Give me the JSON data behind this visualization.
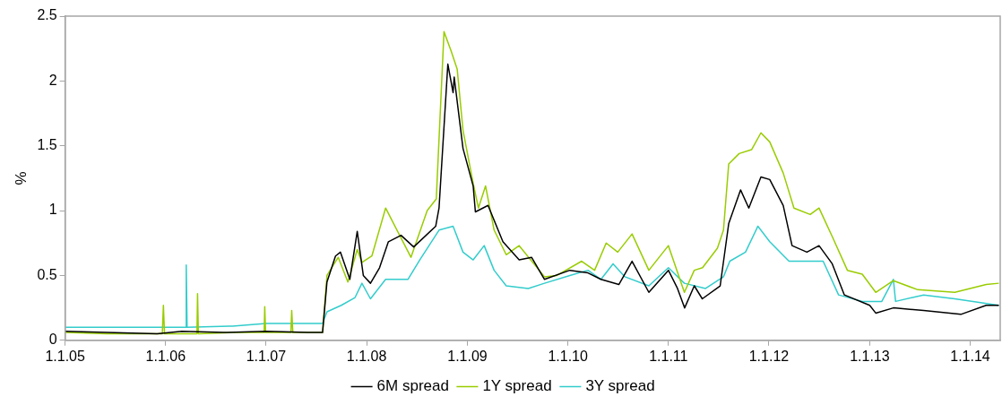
{
  "chart_data": {
    "type": "line",
    "ylabel": "%",
    "xlim": [
      "2005-01-01",
      "2014-04-20"
    ],
    "xticks": [
      {
        "value": "2005-01-01",
        "label": "1.1.05"
      },
      {
        "value": "2006-01-01",
        "label": "1.1.06"
      },
      {
        "value": "2007-01-01",
        "label": "1.1.07"
      },
      {
        "value": "2008-01-01",
        "label": "1.1.08"
      },
      {
        "value": "2009-01-01",
        "label": "1.1.09"
      },
      {
        "value": "2010-01-01",
        "label": "1.1.10"
      },
      {
        "value": "2011-01-01",
        "label": "1.1.11"
      },
      {
        "value": "2012-01-01",
        "label": "1.1.12"
      },
      {
        "value": "2013-01-01",
        "label": "1.1.13"
      },
      {
        "value": "2014-01-01",
        "label": "1.1.14"
      }
    ],
    "ylim": [
      0,
      2.5
    ],
    "yticks": [
      0,
      0.5,
      1,
      1.5,
      2,
      2.5
    ],
    "grid": false,
    "legend": "bottom",
    "marker": "none",
    "line_style": "solid",
    "series": [
      {
        "name": "6M spread",
        "color": "#000000",
        "x": [
          "2005-01-03",
          "2005-06-01",
          "2005-12-01",
          "2006-03-01",
          "2006-08-01",
          "2007-01-01",
          "2007-06-01",
          "2007-07-25",
          "2007-08-10",
          "2007-09-10",
          "2007-09-28",
          "2007-11-01",
          "2007-11-28",
          "2007-12-20",
          "2008-01-15",
          "2008-02-17",
          "2008-03-20",
          "2008-05-05",
          "2008-06-20",
          "2008-09-08",
          "2008-09-20",
          "2008-10-22",
          "2008-11-10",
          "2008-11-14",
          "2008-12-16",
          "2009-01-22",
          "2009-01-30",
          "2009-03-17",
          "2009-05-10",
          "2009-07-08",
          "2009-08-22",
          "2009-10-08",
          "2010-01-08",
          "2010-03-15",
          "2010-05-01",
          "2010-07-05",
          "2010-08-22",
          "2010-10-22",
          "2011-01-01",
          "2011-02-03",
          "2011-03-01",
          "2011-04-05",
          "2011-05-04",
          "2011-07-08",
          "2011-08-08",
          "2011-09-20",
          "2011-10-20",
          "2011-12-03",
          "2012-01-04",
          "2012-02-22",
          "2012-03-25",
          "2012-05-18",
          "2012-07-01",
          "2012-08-18",
          "2012-10-01",
          "2013-01-01",
          "2013-01-23",
          "2013-03-28",
          "2013-07-16",
          "2013-11-28",
          "2014-02-28",
          "2014-04-15"
        ],
        "values": [
          0.07,
          0.06,
          0.05,
          0.07,
          0.06,
          0.07,
          0.06,
          0.06,
          0.45,
          0.65,
          0.68,
          0.47,
          0.84,
          0.5,
          0.44,
          0.56,
          0.76,
          0.81,
          0.72,
          0.88,
          1.02,
          2.13,
          1.91,
          2.03,
          1.48,
          1.19,
          0.99,
          1.04,
          0.76,
          0.62,
          0.64,
          0.47,
          0.54,
          0.52,
          0.47,
          0.43,
          0.61,
          0.37,
          0.54,
          0.4,
          0.25,
          0.42,
          0.32,
          0.42,
          0.9,
          1.16,
          1.02,
          1.26,
          1.24,
          1.04,
          0.73,
          0.68,
          0.73,
          0.59,
          0.35,
          0.27,
          0.21,
          0.25,
          0.23,
          0.2,
          0.27,
          0.27
        ]
      },
      {
        "name": "1Y spread",
        "color": "#99cc00",
        "x": [
          "2005-01-03",
          "2005-06-01",
          "2005-12-20",
          "2005-12-24",
          "2005-12-28",
          "2006-04-25",
          "2006-04-27",
          "2006-04-30",
          "2006-09-01",
          "2006-12-25",
          "2006-12-27",
          "2006-12-30",
          "2007-04-01",
          "2007-04-04",
          "2007-04-08",
          "2007-07-25",
          "2007-08-10",
          "2007-09-20",
          "2007-10-25",
          "2007-11-28",
          "2007-12-15",
          "2008-01-20",
          "2008-03-10",
          "2008-06-10",
          "2008-08-08",
          "2008-09-10",
          "2008-10-08",
          "2008-11-03",
          "2008-11-25",
          "2008-12-16",
          "2009-01-22",
          "2009-02-10",
          "2009-03-08",
          "2009-04-08",
          "2009-05-22",
          "2009-07-08",
          "2009-10-08",
          "2009-11-22",
          "2010-02-20",
          "2010-04-08",
          "2010-05-20",
          "2010-07-01",
          "2010-08-22",
          "2010-10-22",
          "2011-01-01",
          "2011-02-28",
          "2011-04-05",
          "2011-05-05",
          "2011-06-28",
          "2011-07-20",
          "2011-08-08",
          "2011-09-15",
          "2011-10-30",
          "2011-12-03",
          "2012-01-04",
          "2012-02-22",
          "2012-04-01",
          "2012-05-30",
          "2012-07-01",
          "2012-08-18",
          "2012-10-12",
          "2012-12-05",
          "2013-01-23",
          "2013-03-28",
          "2013-06-25",
          "2013-11-06",
          "2014-02-28",
          "2014-04-15"
        ],
        "values": [
          0.06,
          0.05,
          0.05,
          0.27,
          0.05,
          0.05,
          0.36,
          0.05,
          0.06,
          0.06,
          0.26,
          0.06,
          0.06,
          0.23,
          0.06,
          0.06,
          0.5,
          0.64,
          0.45,
          0.7,
          0.6,
          0.65,
          1.02,
          0.64,
          1,
          1.09,
          2.38,
          2.23,
          2.09,
          1.62,
          1.21,
          1.02,
          1.19,
          0.85,
          0.66,
          0.73,
          0.49,
          0.5,
          0.61,
          0.54,
          0.75,
          0.68,
          0.82,
          0.54,
          0.73,
          0.37,
          0.54,
          0.56,
          0.71,
          0.85,
          1.36,
          1.44,
          1.47,
          1.6,
          1.53,
          1.29,
          1.02,
          0.97,
          1.02,
          0.8,
          0.54,
          0.51,
          0.37,
          0.46,
          0.39,
          0.37,
          0.43,
          0.44
        ]
      },
      {
        "name": "3Y spread",
        "color": "#33cccc",
        "x": [
          "2005-01-03",
          "2005-06-01",
          "2006-03-15",
          "2006-03-17",
          "2006-03-20",
          "2006-09-01",
          "2007-01-01",
          "2007-07-25",
          "2007-08-10",
          "2007-10-01",
          "2007-11-20",
          "2007-12-15",
          "2008-01-15",
          "2008-03-10",
          "2008-05-30",
          "2008-07-12",
          "2008-09-20",
          "2008-11-10",
          "2008-12-16",
          "2009-01-22",
          "2009-03-03",
          "2009-04-08",
          "2009-05-22",
          "2009-08-10",
          "2009-10-08",
          "2010-01-08",
          "2010-03-15",
          "2010-05-01",
          "2010-06-14",
          "2010-07-27",
          "2010-10-22",
          "2011-01-01",
          "2011-02-28",
          "2011-05-16",
          "2011-07-20",
          "2011-08-12",
          "2011-10-08",
          "2011-11-22",
          "2012-01-04",
          "2012-03-14",
          "2012-05-18",
          "2012-07-16",
          "2012-09-10",
          "2012-12-05",
          "2013-02-14",
          "2013-03-28",
          "2013-04-05",
          "2013-07-16",
          "2013-11-06",
          "2014-04-15"
        ],
        "values": [
          0.1,
          0.1,
          0.1,
          0.58,
          0.1,
          0.11,
          0.13,
          0.13,
          0.22,
          0.27,
          0.33,
          0.44,
          0.32,
          0.47,
          0.47,
          0.62,
          0.85,
          0.88,
          0.68,
          0.62,
          0.73,
          0.54,
          0.42,
          0.4,
          0.44,
          0.5,
          0.54,
          0.47,
          0.59,
          0.49,
          0.42,
          0.56,
          0.44,
          0.4,
          0.49,
          0.61,
          0.68,
          0.88,
          0.76,
          0.61,
          0.61,
          0.61,
          0.35,
          0.3,
          0.3,
          0.47,
          0.3,
          0.35,
          0.32,
          0.27
        ]
      }
    ]
  }
}
